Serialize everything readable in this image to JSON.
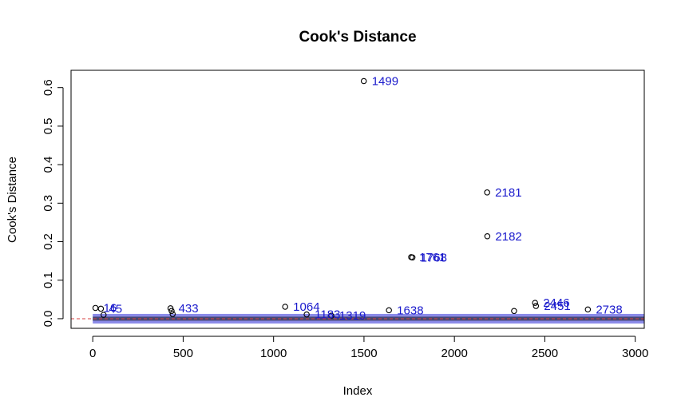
{
  "chart_data": {
    "type": "scatter",
    "title": "Cook's Distance",
    "xlabel": "Index",
    "ylabel": "Cook's Distance",
    "xlim": [
      -120,
      3050
    ],
    "ylim": [
      -0.025,
      0.645
    ],
    "x_ticks": [
      0,
      500,
      1000,
      1500,
      2000,
      2500,
      3000
    ],
    "y_ticks": [
      0.0,
      0.1,
      0.2,
      0.3,
      0.4,
      0.5,
      0.6
    ],
    "x_tick_labels": [
      "0",
      "500",
      "1000",
      "1500",
      "2000",
      "2500",
      "3000"
    ],
    "y_tick_labels": [
      "0.0",
      "0.1",
      "0.2",
      "0.3",
      "0.4",
      "0.5",
      "0.6"
    ],
    "reference_line": {
      "y": 0.0,
      "color": "#d94040",
      "style": "dashed"
    },
    "grid": false,
    "colors": {
      "points": "#000000",
      "labels": "#1a1acc",
      "reference": "#d94040"
    },
    "points": [
      {
        "x": 15,
        "y": 0.028
      },
      {
        "x": 45,
        "y": 0.026
      },
      {
        "x": 60,
        "y": 0.01
      },
      {
        "x": 430,
        "y": 0.027
      },
      {
        "x": 436,
        "y": 0.02
      },
      {
        "x": 442,
        "y": 0.012
      },
      {
        "x": 1064,
        "y": 0.031
      },
      {
        "x": 1183,
        "y": 0.011
      },
      {
        "x": 1319,
        "y": 0.008
      },
      {
        "x": 1499,
        "y": 0.617
      },
      {
        "x": 1638,
        "y": 0.022
      },
      {
        "x": 1761,
        "y": 0.16
      },
      {
        "x": 1768,
        "y": 0.159
      },
      {
        "x": 2181,
        "y": 0.328
      },
      {
        "x": 2182,
        "y": 0.214
      },
      {
        "x": 2330,
        "y": 0.02
      },
      {
        "x": 2446,
        "y": 0.041
      },
      {
        "x": 2451,
        "y": 0.033
      },
      {
        "x": 2738,
        "y": 0.024
      }
    ],
    "labeled_points": [
      {
        "label": "1499",
        "x": 1499,
        "y": 0.617
      },
      {
        "label": "2181",
        "x": 2181,
        "y": 0.328
      },
      {
        "label": "2182",
        "x": 2182,
        "y": 0.214
      },
      {
        "label": "1768",
        "x": 1768,
        "y": 0.159
      },
      {
        "label": "1761",
        "x": 1761,
        "y": 0.16
      },
      {
        "label": "1064",
        "x": 1064,
        "y": 0.031
      },
      {
        "label": "2446",
        "x": 2446,
        "y": 0.041
      },
      {
        "label": "2451",
        "x": 2451,
        "y": 0.033
      },
      {
        "label": "2738",
        "x": 2738,
        "y": 0.024
      },
      {
        "label": "1638",
        "x": 1638,
        "y": 0.022
      },
      {
        "label": "1183",
        "x": 1183,
        "y": 0.011
      },
      {
        "label": "1319",
        "x": 1319,
        "y": 0.008
      },
      {
        "label": "433",
        "x": 430,
        "y": 0.027
      },
      {
        "label": "16",
        "x": 15,
        "y": 0.028
      },
      {
        "label": "45",
        "x": 45,
        "y": 0.026
      }
    ]
  }
}
